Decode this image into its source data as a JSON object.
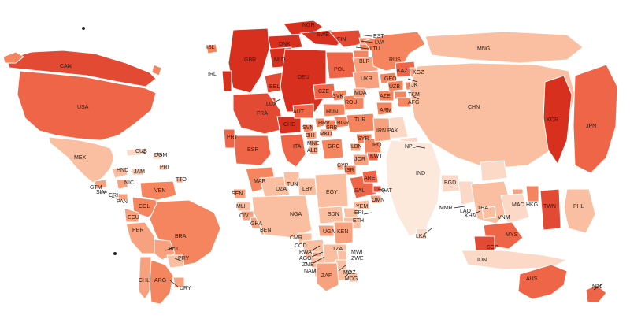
{
  "colors": {
    "darkest": "#d7301f",
    "dark": "#e34a33",
    "mid_dark": "#ef6548",
    "mid": "#f4855f",
    "light": "#f7a17e",
    "lighter": "#f9bfa0",
    "lightest": "#fbd9c6",
    "pale": "#fde8dc"
  },
  "countries": {
    "can": "CAN",
    "usa": "USA",
    "mex": "MEX",
    "cub": "CUB",
    "dom": "DOM",
    "hnd": "HND",
    "jam": "JAM",
    "pri": "PRI",
    "tto": "TTO",
    "gtm": "GTM",
    "slv": "SLV",
    "nic": "NIC",
    "cri": "CRI",
    "pan": "PAN",
    "ven": "VEN",
    "col": "COL",
    "ecu": "ECU",
    "per": "PER",
    "bra": "BRA",
    "bol": "BOL",
    "pry": "PRY",
    "chl": "CHL",
    "arg": "ARG",
    "ury": "URY",
    "isl": "ISL",
    "nor": "NOR",
    "swe": "SWE",
    "fin": "FIN",
    "dnk": "DNK",
    "gbr": "GBR",
    "irl": "IRL",
    "nld": "NLD",
    "bel": "BEL",
    "lux": "LUX",
    "deu": "DEU",
    "fra": "FRA",
    "che": "CHE",
    "aut": "AUT",
    "cze": "CZE",
    "pol": "POL",
    "svk": "SVK",
    "hun": "HUN",
    "rou": "ROU",
    "bgr": "BGR",
    "srb": "SRB",
    "hrv": "HRV",
    "svn": "SVN",
    "bih": "BIH",
    "mne": "MNE",
    "alb": "ALB",
    "mkd": "MKD",
    "grc": "GRC",
    "ita": "ITA",
    "esp": "ESP",
    "prt": "PRT",
    "tur": "TUR",
    "cyp": "CYP",
    "syr": "SYR",
    "lbn": "LBN",
    "isr": "ISR",
    "jor": "JOR",
    "irq": "IRQ",
    "irn": "IRN",
    "kwt": "KWT",
    "sau": "SAU",
    "are": "ARE",
    "qat": "QAT",
    "omn": "OMN",
    "yem": "YEM",
    "est": "EST",
    "lva": "LVA",
    "ltu": "LTU",
    "blr": "BLR",
    "ukr": "UKR",
    "mda": "MDA",
    "rus": "RUS",
    "geo": "GEO",
    "arm": "ARM",
    "aze": "AZE",
    "kaz": "KAZ",
    "uzb": "UZB",
    "tkm": "TKM",
    "tjk": "TJK",
    "kgz": "KGZ",
    "afg": "AFG",
    "pak": "PAK",
    "ind": "IND",
    "npl": "NPL",
    "bgd": "BGD",
    "lka": "LKA",
    "mng": "MNG",
    "chn": "CHN",
    "kor": "KOR",
    "jpn": "JPN",
    "twn": "TWN",
    "hkg": "HKG",
    "mac": "MAC",
    "mmr": "MMR",
    "tha": "THA",
    "vnm": "VNM",
    "khm": "KHM",
    "lao": "LAO",
    "mys": "MYS",
    "sgp": "SGP",
    "idn": "IDN",
    "phl": "PHL",
    "aus": "AUS",
    "nzl": "NZL",
    "mar": "MAR",
    "dza": "DZA",
    "tun": "TUN",
    "lby": "LBY",
    "egy": "EGY",
    "sen": "SEN",
    "mli": "MLI",
    "civ": "CIV",
    "gha": "GHA",
    "ben": "BEN",
    "nga": "NGA",
    "sdn": "SDN",
    "eri": "ERI",
    "eth": "ETH",
    "cmr": "CMR",
    "cod": "COD",
    "uga": "UGA",
    "ken": "KEN",
    "rwa": "RWA",
    "ago": "AGO",
    "tza": "TZA",
    "zmb": "ZMB",
    "mwi": "MWI",
    "zwe": "ZWE",
    "nam": "NAM",
    "moz": "MOZ",
    "zaf": "ZAF",
    "mdg": "MDG"
  }
}
